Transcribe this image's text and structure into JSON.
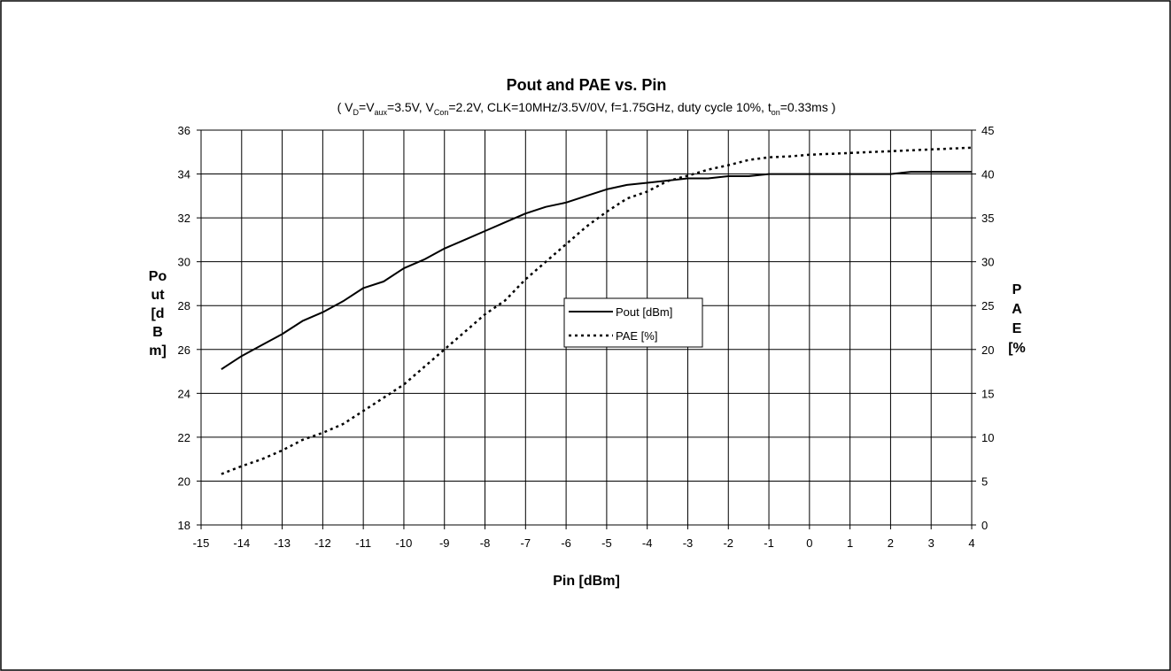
{
  "chart_data": {
    "type": "line",
    "title": "Pout and PAE vs. Pin",
    "subtitle": {
      "p1": "( V",
      "s1": "D",
      "p2": "=V",
      "s2": "aux",
      "p3": "=3.5V, V",
      "s3": "Con",
      "p4": "=2.2V, CLK=10MHz/3.5V/0V, f=1.75GHz, duty cycle 10%, t",
      "s4": "on",
      "p5": "=0.33ms )"
    },
    "xlabel": "Pin [dBm]",
    "ylabel_left_lines": [
      "Po",
      "ut",
      "[d",
      "B",
      "m]"
    ],
    "ylabel_right_lines": [
      "P",
      "A",
      "E",
      "[%"
    ],
    "xlim": [
      -15,
      4
    ],
    "ylim_left": [
      18,
      36
    ],
    "ylim_right": [
      0,
      45
    ],
    "xticks": [
      -15,
      -14,
      -13,
      -12,
      -11,
      -10,
      -9,
      -8,
      -7,
      -6,
      -5,
      -4,
      -3,
      -2,
      -1,
      0,
      1,
      2,
      3,
      4
    ],
    "yticks_left": [
      18,
      20,
      22,
      24,
      26,
      28,
      30,
      32,
      34,
      36
    ],
    "yticks_right": [
      0,
      5,
      10,
      15,
      20,
      25,
      30,
      35,
      40,
      45
    ],
    "grid": true,
    "legend_position": "center",
    "series": [
      {
        "name": "Pout [dBm]",
        "axis": "left",
        "style": "solid",
        "color": "#000000",
        "x": [
          -14.5,
          -14,
          -13.5,
          -13,
          -12.5,
          -12,
          -11.5,
          -11,
          -10.5,
          -10,
          -9.5,
          -9,
          -8.5,
          -8,
          -7.5,
          -7,
          -6.5,
          -6,
          -5.5,
          -5,
          -4.5,
          -4,
          -3.5,
          -3,
          -2.5,
          -2,
          -1.5,
          -1,
          -0.5,
          0,
          0.5,
          1,
          1.5,
          2,
          2.5,
          3,
          3.5,
          4
        ],
        "y": [
          25.1,
          25.7,
          26.2,
          26.7,
          27.3,
          27.7,
          28.2,
          28.8,
          29.1,
          29.7,
          30.1,
          30.6,
          31.0,
          31.4,
          31.8,
          32.2,
          32.5,
          32.7,
          33.0,
          33.3,
          33.5,
          33.6,
          33.7,
          33.8,
          33.8,
          33.9,
          33.9,
          34.0,
          34.0,
          34.0,
          34.0,
          34.0,
          34.0,
          34.0,
          34.1,
          34.1,
          34.1,
          34.1
        ]
      },
      {
        "name": "PAE [%]",
        "axis": "right",
        "style": "dotted",
        "color": "#000000",
        "x": [
          -14.5,
          -14,
          -13.5,
          -13,
          -12.5,
          -12,
          -11.5,
          -11,
          -10.5,
          -10,
          -9.5,
          -9,
          -8.5,
          -8,
          -7.5,
          -7,
          -6.5,
          -6,
          -5.5,
          -5,
          -4.5,
          -4,
          -3.5,
          -3,
          -2.5,
          -2,
          -1.5,
          -1,
          -0.5,
          0,
          0.5,
          1,
          1.5,
          2,
          2.5,
          3,
          3.5,
          4
        ],
        "y": [
          5.8,
          6.7,
          7.5,
          8.5,
          9.7,
          10.5,
          11.5,
          13.0,
          14.5,
          16.0,
          18.0,
          20.0,
          22.0,
          24.0,
          25.6,
          28.0,
          30.0,
          32.0,
          34.0,
          35.7,
          37.2,
          38.0,
          39.2,
          39.8,
          40.5,
          41.0,
          41.6,
          41.9,
          42.0,
          42.2,
          42.3,
          42.4,
          42.5,
          42.6,
          42.7,
          42.8,
          42.9,
          43.0
        ]
      }
    ]
  }
}
